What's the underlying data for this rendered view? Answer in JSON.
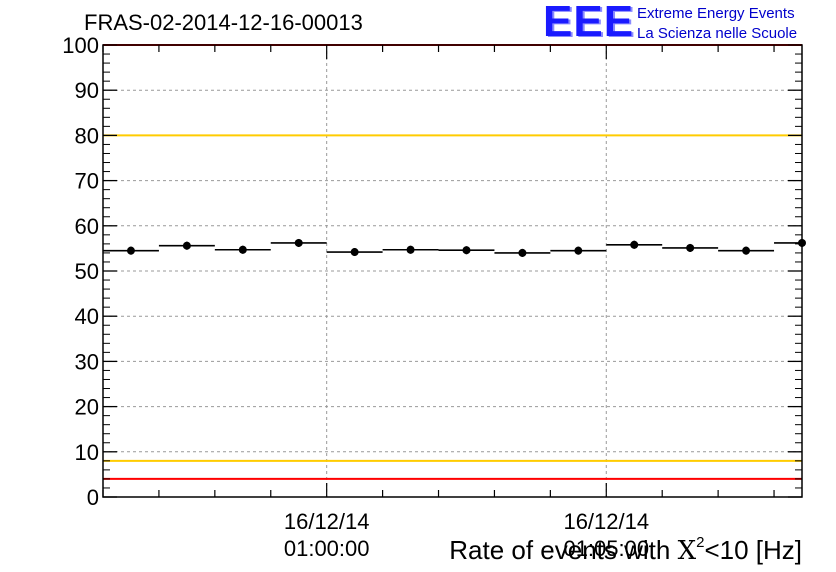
{
  "header": {
    "title": "FRAS-02-2014-12-16-00013",
    "logo_mark": "EEE",
    "logo_line1": "Extreme Energy Events",
    "logo_line2": "La Scienza nelle Scuole"
  },
  "chart_data": {
    "type": "scatter",
    "title": "FRAS-02-2014-12-16-00013",
    "xlabel_prefix": "Rate of events with ",
    "xlabel_symbol": "X",
    "xlabel_sup": "2",
    "xlabel_suffix": "<10 [Hz]",
    "ylabel": "",
    "ylim": [
      0,
      100
    ],
    "yticks": [
      0,
      10,
      20,
      30,
      40,
      50,
      60,
      70,
      80,
      90,
      100
    ],
    "grid": true,
    "x_range_minutes": [
      56.0,
      68.5
    ],
    "xtick_labels": [
      {
        "minute": 60,
        "line1": "16/12/14",
        "line2": "01:00:00"
      },
      {
        "minute": 65,
        "line1": "16/12/14",
        "line2": "01:05:00"
      }
    ],
    "bin_width_minutes": 1.0,
    "series": [
      {
        "x_minutes": [
          56.5,
          57.5,
          58.5,
          59.5,
          60.5,
          61.5,
          62.5,
          63.5,
          64.5,
          65.5,
          66.5,
          67.5,
          68.5
        ],
        "values": [
          54.5,
          55.6,
          54.7,
          56.2,
          54.2,
          54.7,
          54.6,
          54.0,
          54.5,
          55.8,
          55.1,
          54.5,
          56.2
        ]
      }
    ],
    "reference_lines": [
      {
        "value": 100,
        "color": "#ff0000"
      },
      {
        "value": 80,
        "color": "#ffcc00"
      },
      {
        "value": 8,
        "color": "#ffcc00"
      },
      {
        "value": 4,
        "color": "#ff0000"
      }
    ],
    "colors": {
      "markers": "#000000",
      "grid": "#999999",
      "axis": "#000000"
    }
  }
}
